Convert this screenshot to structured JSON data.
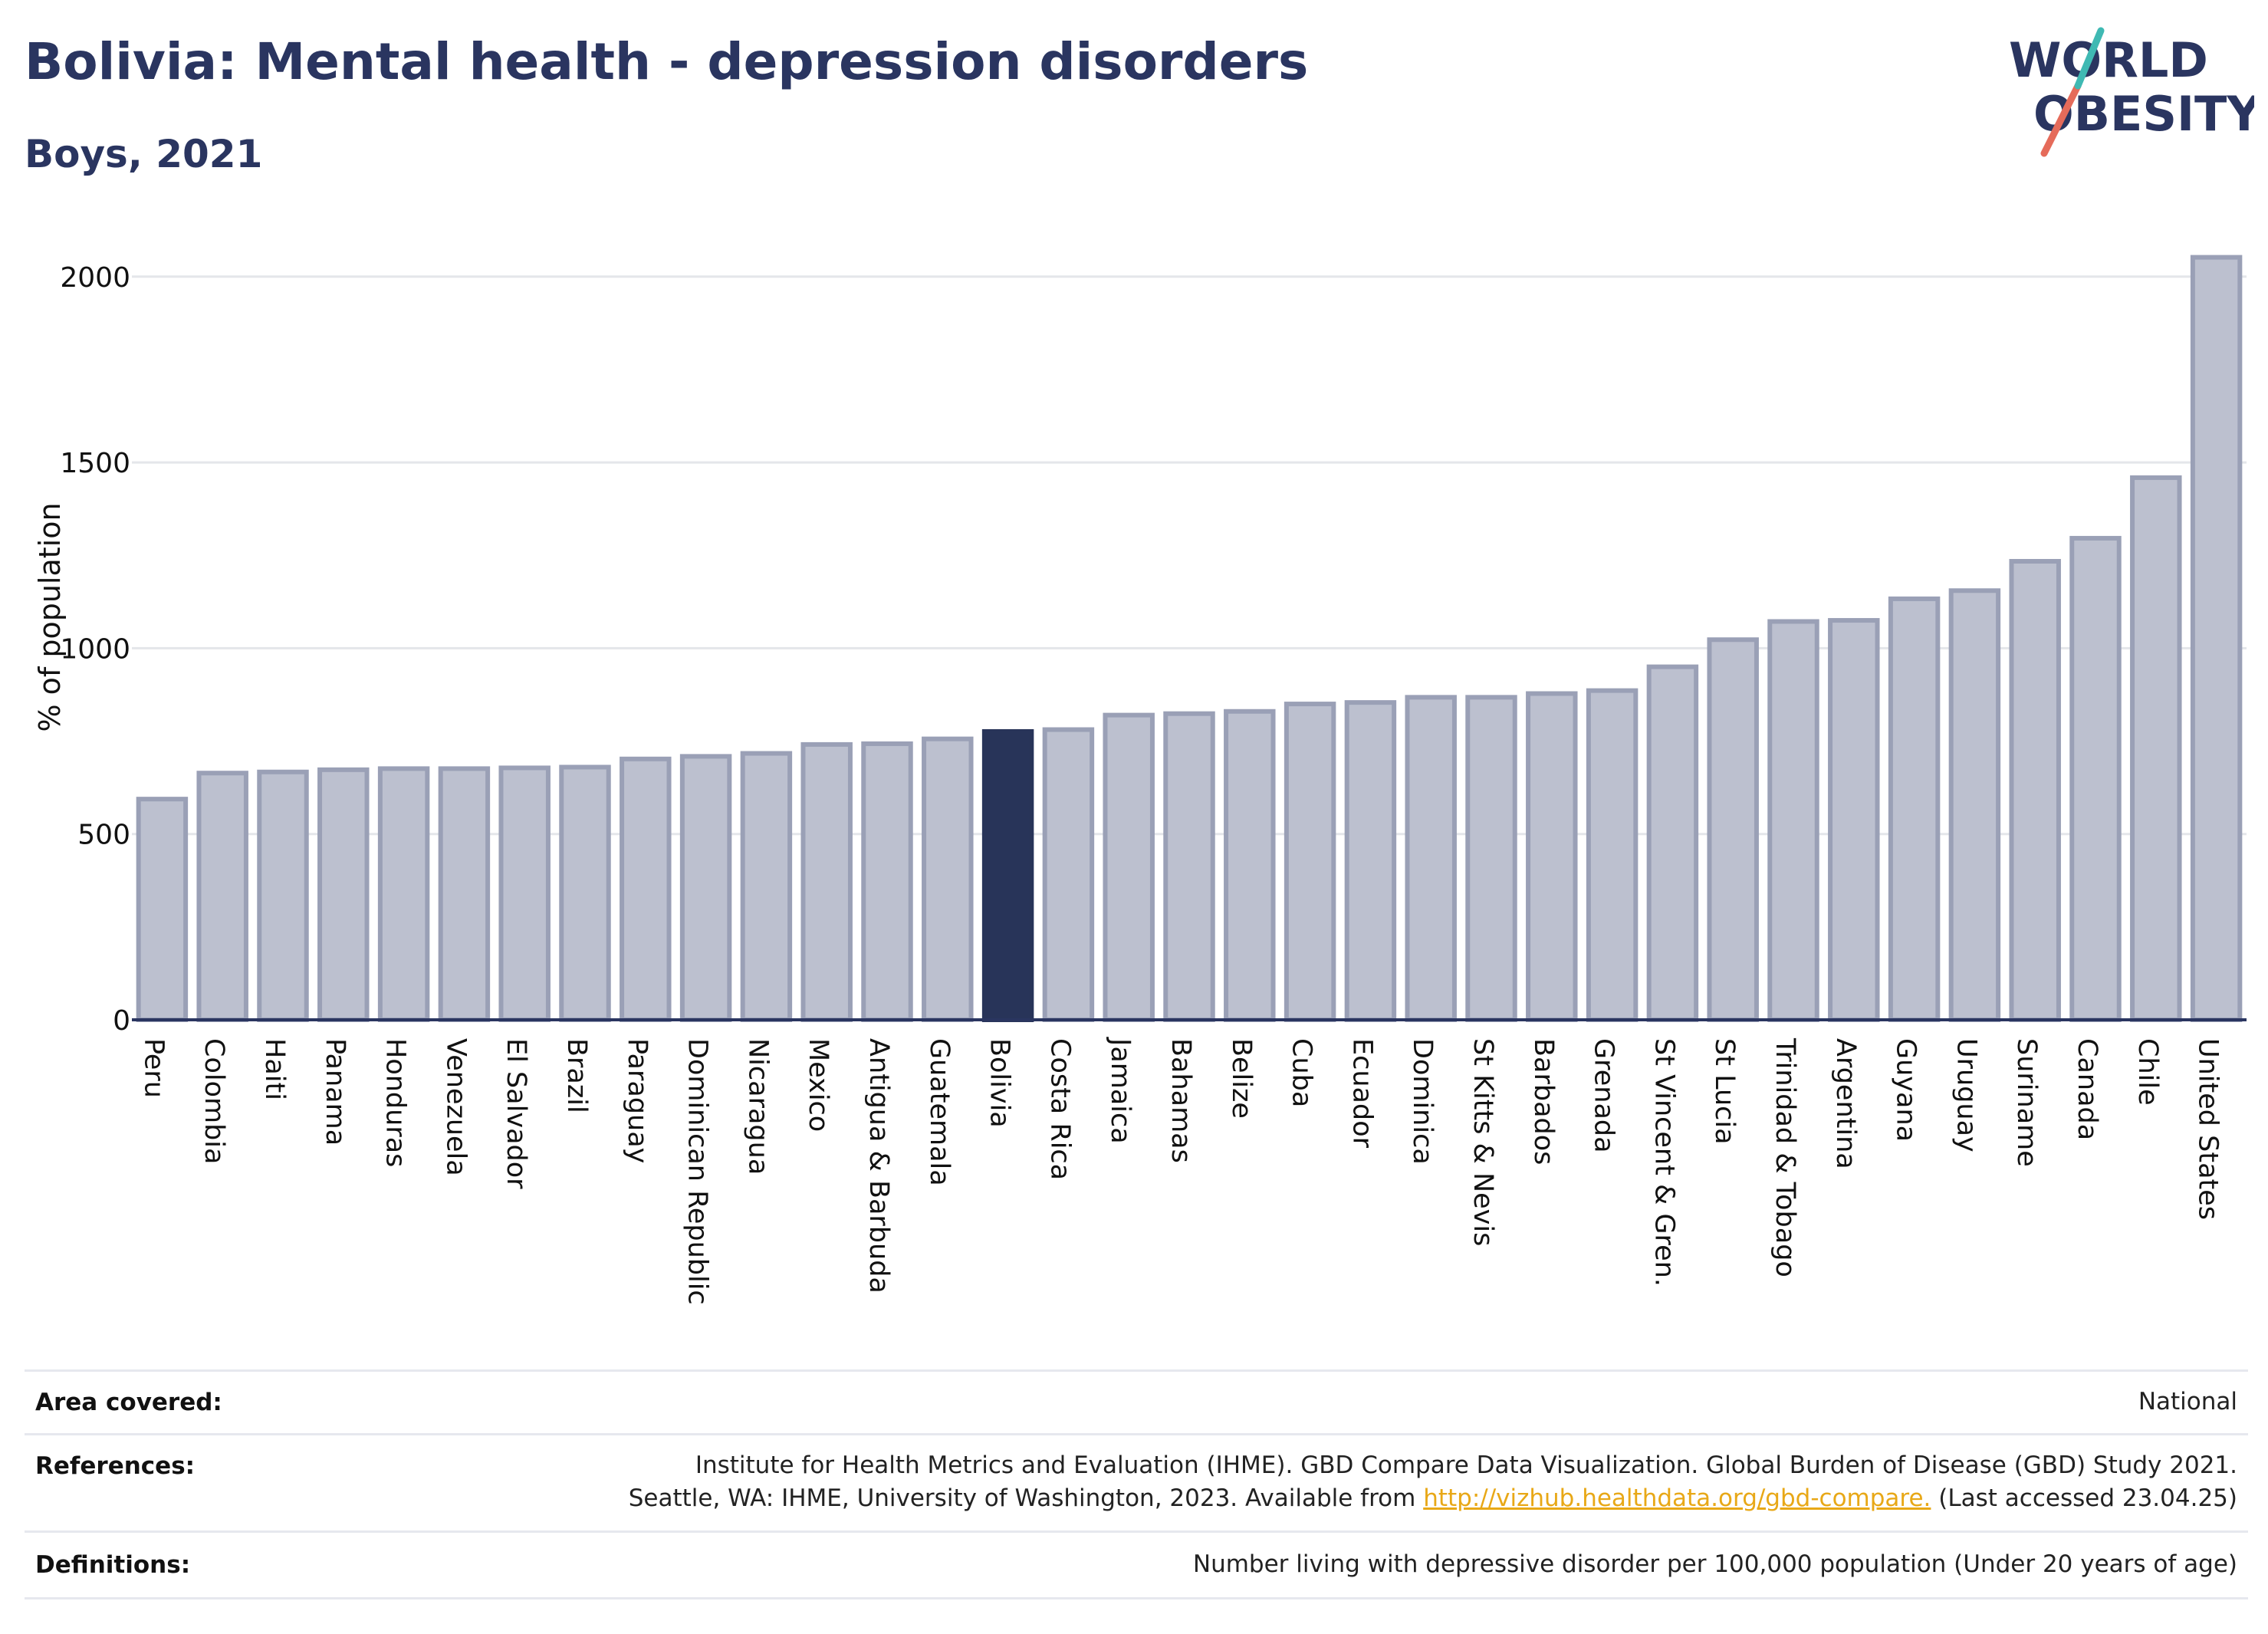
{
  "title": "Bolivia: Mental health - depression disorders",
  "subtitle": "Boys, 2021",
  "logo": {
    "line1": "WORLD",
    "line2": "OBESITY"
  },
  "colors": {
    "title": "#2a3560",
    "bar": "#bcc0cf",
    "bar_border": "#9aa0b6",
    "highlight": "#283459",
    "grid": "#e4e6ea",
    "axis": "#2a3560",
    "link": "#e8a817"
  },
  "chart_data": {
    "type": "bar",
    "title": "Bolivia: Mental health - depression disorders",
    "subtitle": "Boys, 2021",
    "ylabel": "% of population",
    "xlabel": "",
    "ylim": [
      0,
      2080
    ],
    "yticks": [
      0,
      500,
      1000,
      1500,
      2000
    ],
    "grid": true,
    "highlight": "Bolivia",
    "categories": [
      "Peru",
      "Colombia",
      "Haiti",
      "Panama",
      "Honduras",
      "Venezuela",
      "El Salvador",
      "Brazil",
      "Paraguay",
      "Dominican Republic",
      "Nicaragua",
      "Mexico",
      "Antigua & Barbuda",
      "Guatemala",
      "Bolivia",
      "Costa Rica",
      "Jamaica",
      "Bahamas",
      "Belize",
      "Cuba",
      "Ecuador",
      "Dominica",
      "St Kitts & Nevis",
      "Barbados",
      "Grenada",
      "St Vincent & Gren.",
      "St Lucia",
      "Trinidad & Tobago",
      "Argentina",
      "Guyana",
      "Uruguay",
      "Suriname",
      "Canada",
      "Chile",
      "United States"
    ],
    "values": [
      594,
      664,
      667,
      673,
      676,
      676,
      678,
      680,
      702,
      709,
      717,
      741,
      743,
      756,
      776,
      781,
      820,
      824,
      830,
      850,
      854,
      868,
      868,
      878,
      886,
      950,
      1023,
      1072,
      1075,
      1133,
      1155,
      1234,
      1296,
      1459,
      2052
    ]
  },
  "footer": {
    "area_label": "Area covered:",
    "area_value": "National",
    "references_label": "References:",
    "references_line1": "Institute for Health Metrics and Evaluation (IHME). GBD Compare Data Visualization. Global Burden of Disease (GBD) Study 2021.",
    "references_line2_pre": "Seattle, WA: IHME, University of Washington, 2023. Available from",
    "references_link": "http://vizhub.healthdata.org/gbd-compare.",
    "references_line2_post": "(Last accessed 23.04.25)",
    "definitions_label": "Definitions:",
    "definitions_value": "Number living with depressive disorder per 100,000 population (Under 20 years of age)"
  }
}
